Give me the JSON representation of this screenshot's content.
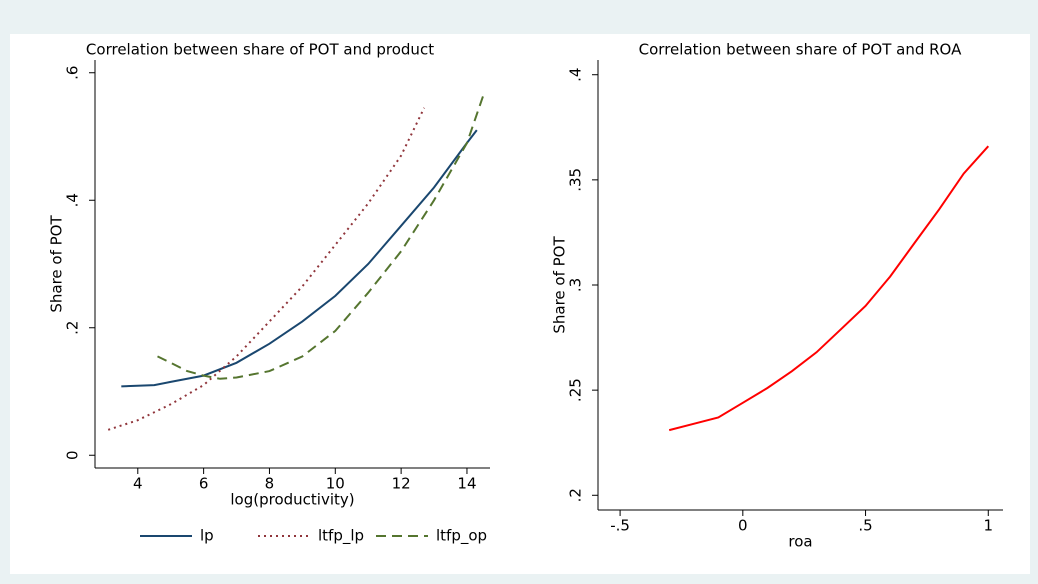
{
  "chart_data": [
    {
      "type": "line",
      "title": "Correlation between share of POT and product",
      "xlabel": "log(productivity)",
      "ylabel": "Share of POT",
      "xlim": [
        2.7,
        14.7
      ],
      "ylim": [
        -0.02,
        0.62
      ],
      "xticks": [
        4,
        6,
        8,
        10,
        12,
        14
      ],
      "yticks": [
        0,
        {
          "value": 0.2,
          "label": ".2"
        },
        {
          "value": 0.4,
          "label": ".4"
        },
        {
          "value": 0.6,
          "label": ".6"
        }
      ],
      "legend": "bottom",
      "series": [
        {
          "name": "lp",
          "color": "#1a476f",
          "dash": "solid",
          "x": [
            3.5,
            4.5,
            5,
            6,
            7,
            8,
            9,
            10,
            11,
            12,
            13,
            14,
            14.3
          ],
          "values": [
            0.108,
            0.11,
            0.115,
            0.125,
            0.145,
            0.175,
            0.21,
            0.25,
            0.3,
            0.36,
            0.42,
            0.49,
            0.51
          ]
        },
        {
          "name": "ltfp_lp",
          "color": "#90353b",
          "dash": "dotted",
          "x": [
            3.1,
            4,
            5,
            6,
            7,
            8,
            9,
            10,
            11,
            12,
            12.7
          ],
          "values": [
            0.04,
            0.055,
            0.08,
            0.11,
            0.155,
            0.21,
            0.265,
            0.33,
            0.395,
            0.47,
            0.545
          ]
        },
        {
          "name": "ltfp_op",
          "color": "#55752f",
          "dash": "dashed",
          "x": [
            4.6,
            5,
            5.5,
            6,
            6.5,
            7,
            8,
            9,
            10,
            11,
            12,
            13,
            14,
            14.5
          ],
          "values": [
            0.155,
            0.145,
            0.132,
            0.125,
            0.12,
            0.122,
            0.132,
            0.155,
            0.195,
            0.255,
            0.32,
            0.4,
            0.49,
            0.565
          ]
        }
      ]
    },
    {
      "type": "line",
      "title": "Correlation between share of POT and ROA",
      "xlabel": "roa",
      "ylabel": "Share of POT",
      "xlim": [
        -0.59,
        1.06
      ],
      "ylim": [
        0.193,
        0.407
      ],
      "xticks": [
        {
          "value": -0.5,
          "label": "-.5"
        },
        0,
        {
          "value": 0.5,
          "label": ".5"
        },
        1
      ],
      "yticks": [
        {
          "value": 0.2,
          "label": ".2"
        },
        {
          "value": 0.25,
          "label": ".25"
        },
        {
          "value": 0.3,
          "label": ".3"
        },
        {
          "value": 0.35,
          "label": ".35"
        },
        {
          "value": 0.4,
          "label": ".4"
        }
      ],
      "series": [
        {
          "name": null,
          "color": "#ff0000",
          "dash": "solid",
          "x": [
            -0.3,
            -0.2,
            -0.1,
            0,
            0.1,
            0.2,
            0.3,
            0.4,
            0.5,
            0.6,
            0.7,
            0.8,
            0.9,
            1.0
          ],
          "values": [
            0.231,
            0.234,
            0.237,
            0.244,
            0.251,
            0.259,
            0.268,
            0.279,
            0.29,
            0.304,
            0.32,
            0.336,
            0.353,
            0.366
          ]
        }
      ]
    }
  ]
}
